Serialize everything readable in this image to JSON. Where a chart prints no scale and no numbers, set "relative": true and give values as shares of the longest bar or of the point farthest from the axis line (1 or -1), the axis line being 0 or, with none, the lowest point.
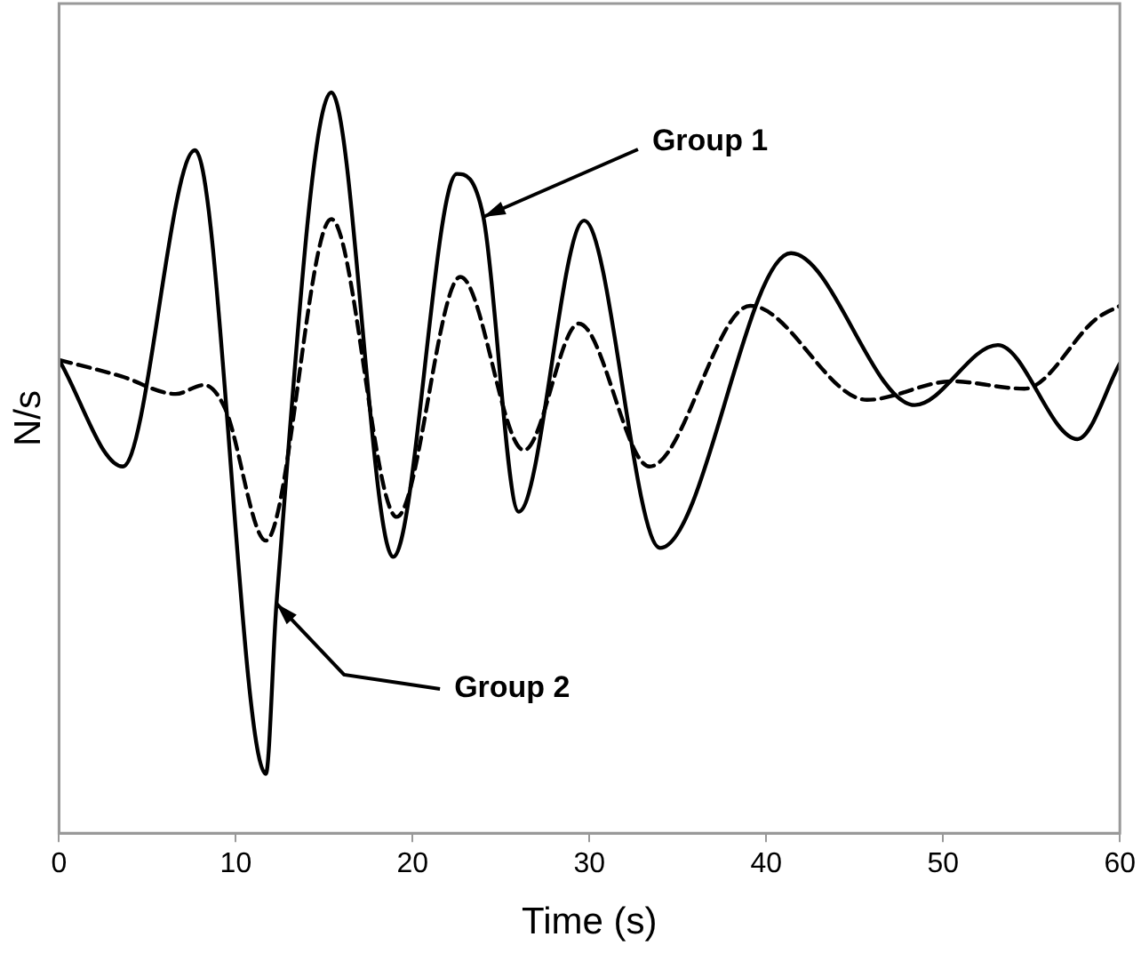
{
  "chart_data": {
    "type": "line",
    "relative": true,
    "xlabel": "Time (s)",
    "ylabel": "N/s",
    "xlim": [
      0,
      60
    ],
    "xticks": [
      0,
      10,
      20,
      30,
      40,
      50,
      60
    ],
    "grid": false,
    "legend": false,
    "marker": "none",
    "series": [
      {
        "color": "#000000",
        "line_style": "solid",
        "x": [
          0,
          3.6,
          7.7,
          11.7,
          12.3,
          15.4,
          18.9,
          22.5,
          24.0,
          26.0,
          29.7,
          34.0,
          41.4,
          48.4,
          53.1,
          57.6,
          60
        ],
        "values": [
          0.639,
          0.495,
          0.922,
          0.08,
          0.31,
          1.0,
          0.373,
          0.89,
          0.832,
          0.434,
          0.827,
          0.385,
          0.783,
          0.578,
          0.659,
          0.532,
          0.634
        ]
      },
      {
        "color": "#000000",
        "line_style": "dashed",
        "x": [
          0,
          3.5,
          6.6,
          8.2,
          9.4,
          11.7,
          15.4,
          19.1,
          22.7,
          26.3,
          29.4,
          33.4,
          39.1,
          45.7,
          50.5,
          54.6,
          58.7,
          60
        ],
        "values": [
          0.639,
          0.617,
          0.593,
          0.605,
          0.573,
          0.395,
          0.829,
          0.427,
          0.751,
          0.517,
          0.688,
          0.495,
          0.712,
          0.585,
          0.61,
          0.6,
          0.695,
          0.712
        ]
      }
    ],
    "annotations": [
      {
        "text": "Group 1",
        "x": 24.0,
        "y": 0.832
      },
      {
        "text": "Group 2",
        "x": 12.3,
        "y": 0.31
      }
    ]
  }
}
